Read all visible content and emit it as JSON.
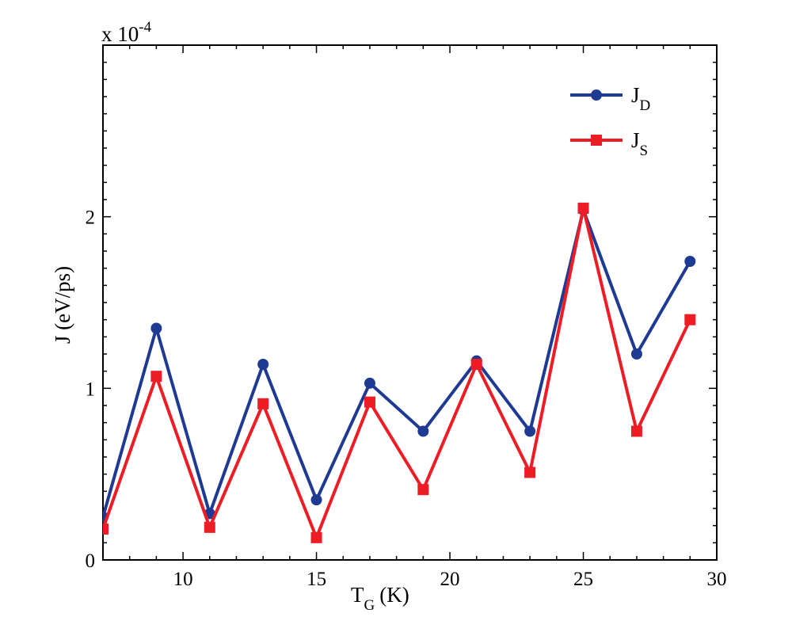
{
  "chart_data": {
    "type": "line",
    "title": "",
    "xlabel_main": "T",
    "xlabel_sub": "G",
    "xlabel_unit": "(K)",
    "ylabel": "J (eV/ps)",
    "y_multiplier": "x 10",
    "y_multiplier_exp": "-4",
    "xlim": [
      7,
      30
    ],
    "ylim": [
      0,
      3.0
    ],
    "x_ticks": [
      10,
      15,
      20,
      25,
      30
    ],
    "x_tick_labels": [
      "10",
      "15",
      "20",
      "25",
      "30"
    ],
    "y_ticks": [
      0,
      1,
      2
    ],
    "y_tick_labels": [
      "0",
      "1",
      "2"
    ],
    "x": [
      7,
      9,
      11,
      13,
      15,
      17,
      19,
      21,
      23,
      25,
      27,
      29
    ],
    "series": [
      {
        "name_main": "J",
        "name_sub": "D",
        "color": "#1f3a93",
        "marker": "circle",
        "values": [
          0.25,
          1.35,
          0.27,
          1.14,
          0.35,
          1.03,
          0.75,
          1.16,
          0.75,
          2.04,
          1.2,
          1.74
        ]
      },
      {
        "name_main": "J",
        "name_sub": "S",
        "color": "#ee1c25",
        "marker": "square",
        "values": [
          0.18,
          1.07,
          0.19,
          0.91,
          0.13,
          0.92,
          0.41,
          1.14,
          0.51,
          2.05,
          0.75,
          1.4
        ]
      }
    ],
    "grid": false,
    "legend_position": "top-right"
  }
}
